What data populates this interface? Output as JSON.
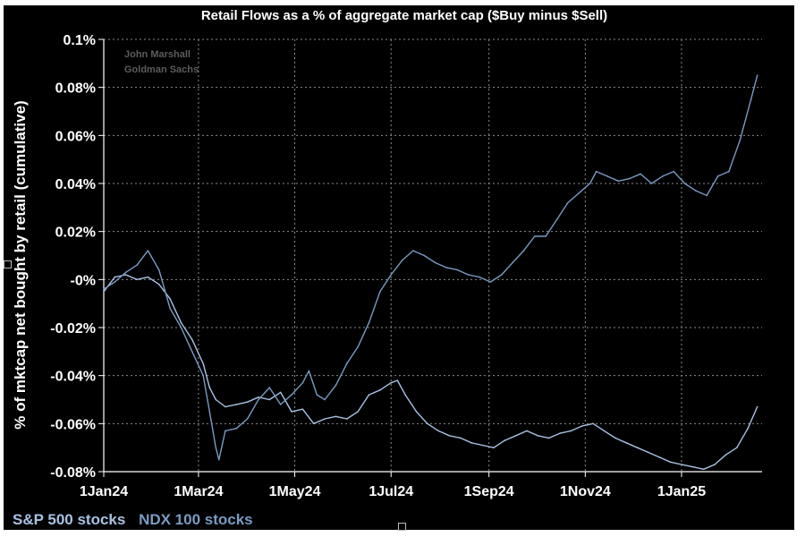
{
  "chart_data": {
    "type": "line",
    "title": "Retail Flows as a % of aggregate market cap ($Buy minus $Sell)",
    "ylabel": "% of mktcap net bought by retail (cumulative)",
    "xlabel": "",
    "watermark": [
      "John Marshall",
      "Goldman Sachs"
    ],
    "x_tick_labels": [
      "1Jan24",
      "1Mar24",
      "1May24",
      "1Jul24",
      "1Sep24",
      "1Nov24",
      "1Jan25"
    ],
    "x_tick_dates": [
      "2024-01-01",
      "2024-03-01",
      "2024-05-01",
      "2024-07-01",
      "2024-09-01",
      "2024-11-01",
      "2025-01-01"
    ],
    "xlim": [
      "2024-01-01",
      "2025-02-21"
    ],
    "y_tick_labels": [
      "0.1%",
      "0.08%",
      "0.06%",
      "0.04%",
      "0.02%",
      "-0%",
      "-0.02%",
      "-0.04%",
      "-0.06%",
      "-0.08%"
    ],
    "y_tick_values": [
      0.1,
      0.08,
      0.06,
      0.04,
      0.02,
      0,
      -0.02,
      -0.04,
      -0.06,
      -0.08
    ],
    "ylim": [
      -0.08,
      0.1
    ],
    "grid": true,
    "background": "#000000",
    "series": [
      {
        "name": "S&P 500 stocks",
        "color": "#a9c2e4",
        "points": [
          [
            "2024-01-01",
            -0.005
          ],
          [
            "2024-01-08",
            0.001
          ],
          [
            "2024-01-15",
            0.002
          ],
          [
            "2024-01-22",
            0.0
          ],
          [
            "2024-01-29",
            0.001
          ],
          [
            "2024-02-05",
            -0.002
          ],
          [
            "2024-02-12",
            -0.008
          ],
          [
            "2024-02-19",
            -0.018
          ],
          [
            "2024-02-26",
            -0.025
          ],
          [
            "2024-03-04",
            -0.035
          ],
          [
            "2024-03-08",
            -0.045
          ],
          [
            "2024-03-12",
            -0.05
          ],
          [
            "2024-03-18",
            -0.053
          ],
          [
            "2024-03-25",
            -0.052
          ],
          [
            "2024-04-01",
            -0.051
          ],
          [
            "2024-04-08",
            -0.049
          ],
          [
            "2024-04-15",
            -0.05
          ],
          [
            "2024-04-22",
            -0.047
          ],
          [
            "2024-04-29",
            -0.055
          ],
          [
            "2024-05-06",
            -0.054
          ],
          [
            "2024-05-13",
            -0.06
          ],
          [
            "2024-05-20",
            -0.058
          ],
          [
            "2024-05-27",
            -0.057
          ],
          [
            "2024-06-03",
            -0.058
          ],
          [
            "2024-06-10",
            -0.055
          ],
          [
            "2024-06-17",
            -0.048
          ],
          [
            "2024-06-24",
            -0.046
          ],
          [
            "2024-07-01",
            -0.043
          ],
          [
            "2024-07-05",
            -0.042
          ],
          [
            "2024-07-10",
            -0.048
          ],
          [
            "2024-07-17",
            -0.055
          ],
          [
            "2024-07-24",
            -0.06
          ],
          [
            "2024-07-31",
            -0.063
          ],
          [
            "2024-08-07",
            -0.065
          ],
          [
            "2024-08-14",
            -0.066
          ],
          [
            "2024-08-21",
            -0.068
          ],
          [
            "2024-08-28",
            -0.069
          ],
          [
            "2024-09-04",
            -0.07
          ],
          [
            "2024-09-11",
            -0.067
          ],
          [
            "2024-09-18",
            -0.065
          ],
          [
            "2024-09-25",
            -0.063
          ],
          [
            "2024-10-02",
            -0.065
          ],
          [
            "2024-10-09",
            -0.066
          ],
          [
            "2024-10-16",
            -0.064
          ],
          [
            "2024-10-23",
            -0.063
          ],
          [
            "2024-10-30",
            -0.061
          ],
          [
            "2024-11-06",
            -0.06
          ],
          [
            "2024-11-13",
            -0.063
          ],
          [
            "2024-11-20",
            -0.066
          ],
          [
            "2024-11-27",
            -0.068
          ],
          [
            "2024-12-04",
            -0.07
          ],
          [
            "2024-12-11",
            -0.072
          ],
          [
            "2024-12-18",
            -0.074
          ],
          [
            "2024-12-25",
            -0.076
          ],
          [
            "2025-01-01",
            -0.077
          ],
          [
            "2025-01-08",
            -0.078
          ],
          [
            "2025-01-15",
            -0.079
          ],
          [
            "2025-01-22",
            -0.077
          ],
          [
            "2025-01-29",
            -0.073
          ],
          [
            "2025-02-05",
            -0.07
          ],
          [
            "2025-02-12",
            -0.062
          ],
          [
            "2025-02-18",
            -0.053
          ]
        ]
      },
      {
        "name": "NDX 100 stocks",
        "color": "#7a9bc2",
        "points": [
          [
            "2024-01-01",
            -0.004
          ],
          [
            "2024-01-08",
            -0.001
          ],
          [
            "2024-01-15",
            0.003
          ],
          [
            "2024-01-22",
            0.006
          ],
          [
            "2024-01-29",
            0.012
          ],
          [
            "2024-02-05",
            0.004
          ],
          [
            "2024-02-12",
            -0.012
          ],
          [
            "2024-02-19",
            -0.02
          ],
          [
            "2024-02-26",
            -0.03
          ],
          [
            "2024-03-04",
            -0.04
          ],
          [
            "2024-03-08",
            -0.055
          ],
          [
            "2024-03-12",
            -0.07
          ],
          [
            "2024-03-14",
            -0.075
          ],
          [
            "2024-03-18",
            -0.063
          ],
          [
            "2024-03-25",
            -0.062
          ],
          [
            "2024-04-01",
            -0.058
          ],
          [
            "2024-04-08",
            -0.05
          ],
          [
            "2024-04-15",
            -0.045
          ],
          [
            "2024-04-22",
            -0.052
          ],
          [
            "2024-04-29",
            -0.048
          ],
          [
            "2024-05-06",
            -0.043
          ],
          [
            "2024-05-10",
            -0.038
          ],
          [
            "2024-05-15",
            -0.048
          ],
          [
            "2024-05-20",
            -0.05
          ],
          [
            "2024-05-27",
            -0.044
          ],
          [
            "2024-06-03",
            -0.035
          ],
          [
            "2024-06-10",
            -0.028
          ],
          [
            "2024-06-17",
            -0.018
          ],
          [
            "2024-06-24",
            -0.005
          ],
          [
            "2024-07-01",
            0.002
          ],
          [
            "2024-07-08",
            0.008
          ],
          [
            "2024-07-15",
            0.012
          ],
          [
            "2024-07-22",
            0.01
          ],
          [
            "2024-07-29",
            0.007
          ],
          [
            "2024-08-05",
            0.005
          ],
          [
            "2024-08-12",
            0.004
          ],
          [
            "2024-08-19",
            0.002
          ],
          [
            "2024-08-26",
            0.001
          ],
          [
            "2024-09-02",
            -0.001
          ],
          [
            "2024-09-09",
            0.002
          ],
          [
            "2024-09-16",
            0.007
          ],
          [
            "2024-09-23",
            0.012
          ],
          [
            "2024-09-30",
            0.018
          ],
          [
            "2024-10-07",
            0.018
          ],
          [
            "2024-10-14",
            0.025
          ],
          [
            "2024-10-21",
            0.032
          ],
          [
            "2024-10-28",
            0.036
          ],
          [
            "2024-11-04",
            0.04
          ],
          [
            "2024-11-08",
            0.045
          ],
          [
            "2024-11-15",
            0.043
          ],
          [
            "2024-11-22",
            0.041
          ],
          [
            "2024-11-29",
            0.042
          ],
          [
            "2024-12-06",
            0.044
          ],
          [
            "2024-12-13",
            0.04
          ],
          [
            "2024-12-20",
            0.043
          ],
          [
            "2024-12-27",
            0.045
          ],
          [
            "2025-01-03",
            0.04
          ],
          [
            "2025-01-10",
            0.037
          ],
          [
            "2025-01-17",
            0.035
          ],
          [
            "2025-01-24",
            0.043
          ],
          [
            "2025-01-31",
            0.045
          ],
          [
            "2025-02-07",
            0.058
          ],
          [
            "2025-02-14",
            0.075
          ],
          [
            "2025-02-18",
            0.085
          ]
        ]
      }
    ],
    "legend": [
      "S&P 500 stocks",
      "NDX 100 stocks"
    ],
    "legend_colors": [
      "#a9c2e4",
      "#7a9bc2"
    ],
    "legend_position": "bottom-left",
    "text_color": "#ffffff",
    "grid_color": "#8a8a8a",
    "watermark_color": "#5c5c5c"
  }
}
